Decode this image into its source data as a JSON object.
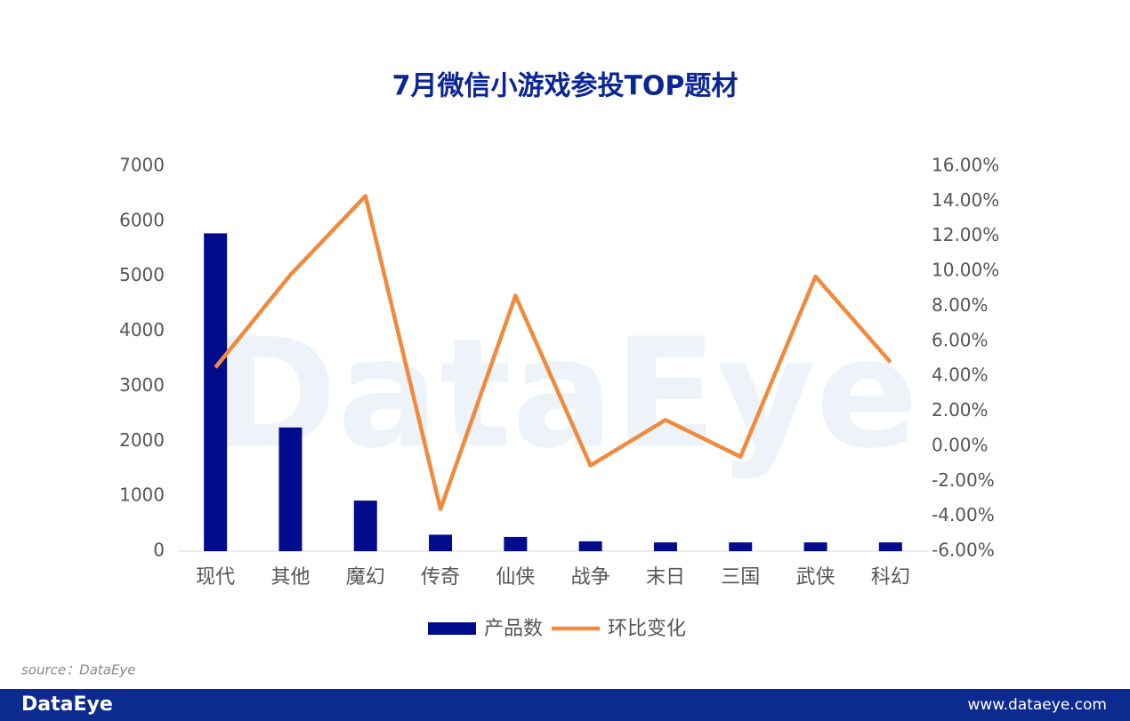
{
  "chart_data": {
    "type": "bar",
    "title": "7月微信小游戏参投TOP题材",
    "categories": [
      "现代",
      "其他",
      "魔幻",
      "传奇",
      "仙侠",
      "战争",
      "末日",
      "三国",
      "武侠",
      "科幻"
    ],
    "series": [
      {
        "name": "产品数",
        "type": "bar",
        "color": "#000c8c",
        "values": [
          5780,
          2250,
          920,
          300,
          260,
          180,
          160,
          160,
          160,
          160
        ]
      },
      {
        "name": "环比变化",
        "type": "line",
        "axis": "y2",
        "color": "#f08a3c",
        "values": [
          4.5,
          9.8,
          14.3,
          -3.6,
          8.6,
          -1.1,
          1.5,
          -0.6,
          9.7,
          4.8
        ]
      }
    ],
    "ylim": [
      0,
      7000
    ],
    "yticks": [
      0,
      1000,
      2000,
      3000,
      4000,
      5000,
      6000,
      7000
    ],
    "y2lim": [
      -6,
      16
    ],
    "y2ticks": [
      {
        "value": -6,
        "label": "-6.00%"
      },
      {
        "value": -4,
        "label": "-4.00%"
      },
      {
        "value": -2,
        "label": "-2.00%"
      },
      {
        "value": 0,
        "label": "0.00%"
      },
      {
        "value": 2,
        "label": "2.00%"
      },
      {
        "value": 4,
        "label": "4.00%"
      },
      {
        "value": 6,
        "label": "6.00%"
      },
      {
        "value": 8,
        "label": "8.00%"
      },
      {
        "value": 10,
        "label": "10.00%"
      },
      {
        "value": 12,
        "label": "12.00%"
      },
      {
        "value": 14,
        "label": "14.00%"
      },
      {
        "value": 16,
        "label": "16.00%"
      }
    ],
    "grid": false,
    "legend": "bottom"
  },
  "watermark": "DataEye",
  "source": "source：DataEye",
  "brand": "DataEye",
  "website": "www.dataeye.com"
}
